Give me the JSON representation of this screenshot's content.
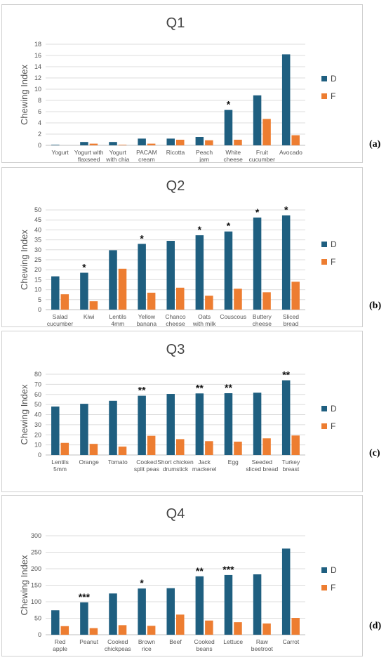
{
  "legend": {
    "D": "D",
    "F": "F",
    "colors": {
      "D": "#1f5f80",
      "F": "#ed7d31"
    }
  },
  "panel_labels": [
    "(a)",
    "(b)",
    "(c)",
    "(d)"
  ],
  "chart_data": [
    {
      "type": "bar",
      "title": "Q1",
      "ylabel": "Chewing Index",
      "ylim": [
        0,
        18
      ],
      "yticks": [
        0,
        2,
        4,
        6,
        8,
        10,
        12,
        14,
        16,
        18
      ],
      "categories": [
        "Yogurt",
        "Yogurt with flaxseed",
        "Yogurt with chia",
        "PACAM cream",
        "Ricotta",
        "Peach jam",
        "White cheese",
        "Fruit cucumber",
        "Avocado"
      ],
      "series": [
        {
          "name": "D",
          "values": [
            0.1,
            0.6,
            0.6,
            1.2,
            1.2,
            1.5,
            6.3,
            8.9,
            16.2
          ]
        },
        {
          "name": "F",
          "values": [
            0.0,
            0.3,
            0.1,
            0.3,
            1.0,
            0.9,
            1.0,
            4.7,
            1.8
          ]
        }
      ],
      "annotations": [
        "",
        "",
        "",
        "",
        "",
        "",
        "*",
        "",
        ""
      ]
    },
    {
      "type": "bar",
      "title": "Q2",
      "ylabel": "Chewing Index",
      "ylim": [
        0,
        50
      ],
      "yticks": [
        0,
        5,
        10,
        15,
        20,
        25,
        30,
        35,
        40,
        45,
        50
      ],
      "categories": [
        "Salad cucumber",
        "Kiwi",
        "Lentils 4mm",
        "Yellow banana",
        "Chanco cheese",
        "Oats with milk",
        "Couscous",
        "Buttery cheese",
        "Sliced bread"
      ],
      "series": [
        {
          "name": "D",
          "values": [
            16.7,
            18.5,
            29.8,
            33.0,
            34.5,
            37.3,
            39.2,
            46.2,
            47.3
          ]
        },
        {
          "name": "F",
          "values": [
            7.7,
            4.2,
            20.5,
            8.5,
            11.0,
            7.0,
            10.5,
            8.7,
            14.0
          ]
        }
      ],
      "annotations": [
        "",
        "*",
        "",
        "*",
        "",
        "*",
        "*",
        "*",
        "*"
      ]
    },
    {
      "type": "bar",
      "title": "Q3",
      "ylabel": "Chewing Index",
      "ylim": [
        0,
        80
      ],
      "yticks": [
        0,
        10,
        20,
        30,
        40,
        50,
        60,
        70,
        80
      ],
      "categories": [
        "Lentils 5mm",
        "Orange",
        "Tomato",
        "Cooked split peas",
        "Short chicken drumstick",
        "Jack mackerel",
        "Egg",
        "Seeded sliced bread",
        "Turkey breast"
      ],
      "series": [
        {
          "name": "D",
          "values": [
            48.0,
            50.7,
            53.7,
            58.7,
            60.5,
            61.0,
            61.2,
            61.7,
            74.0
          ]
        },
        {
          "name": "F",
          "values": [
            12.0,
            11.0,
            8.3,
            19.0,
            15.7,
            13.7,
            13.2,
            16.5,
            19.3
          ]
        }
      ],
      "annotations": [
        "",
        "",
        "",
        "**",
        "",
        "**",
        "**",
        "",
        "**"
      ]
    },
    {
      "type": "bar",
      "title": "Q4",
      "ylabel": "Chewing Index",
      "ylim": [
        0,
        300
      ],
      "yticks": [
        0,
        50,
        100,
        150,
        200,
        250,
        300
      ],
      "categories": [
        "Red apple",
        "Peanut",
        "Cooked chickpeas",
        "Brown rice",
        "Beef",
        "Cooked beans",
        "Lettuce",
        "Raw beetroot",
        "Carrot"
      ],
      "series": [
        {
          "name": "D",
          "values": [
            74,
            98,
            125,
            140,
            141,
            177,
            181,
            183,
            261
          ]
        },
        {
          "name": "F",
          "values": [
            26,
            20,
            29,
            27,
            61,
            43,
            38,
            34,
            51
          ]
        }
      ],
      "annotations": [
        "",
        "***",
        "",
        "*",
        "",
        "**",
        "***",
        "",
        ""
      ]
    }
  ]
}
